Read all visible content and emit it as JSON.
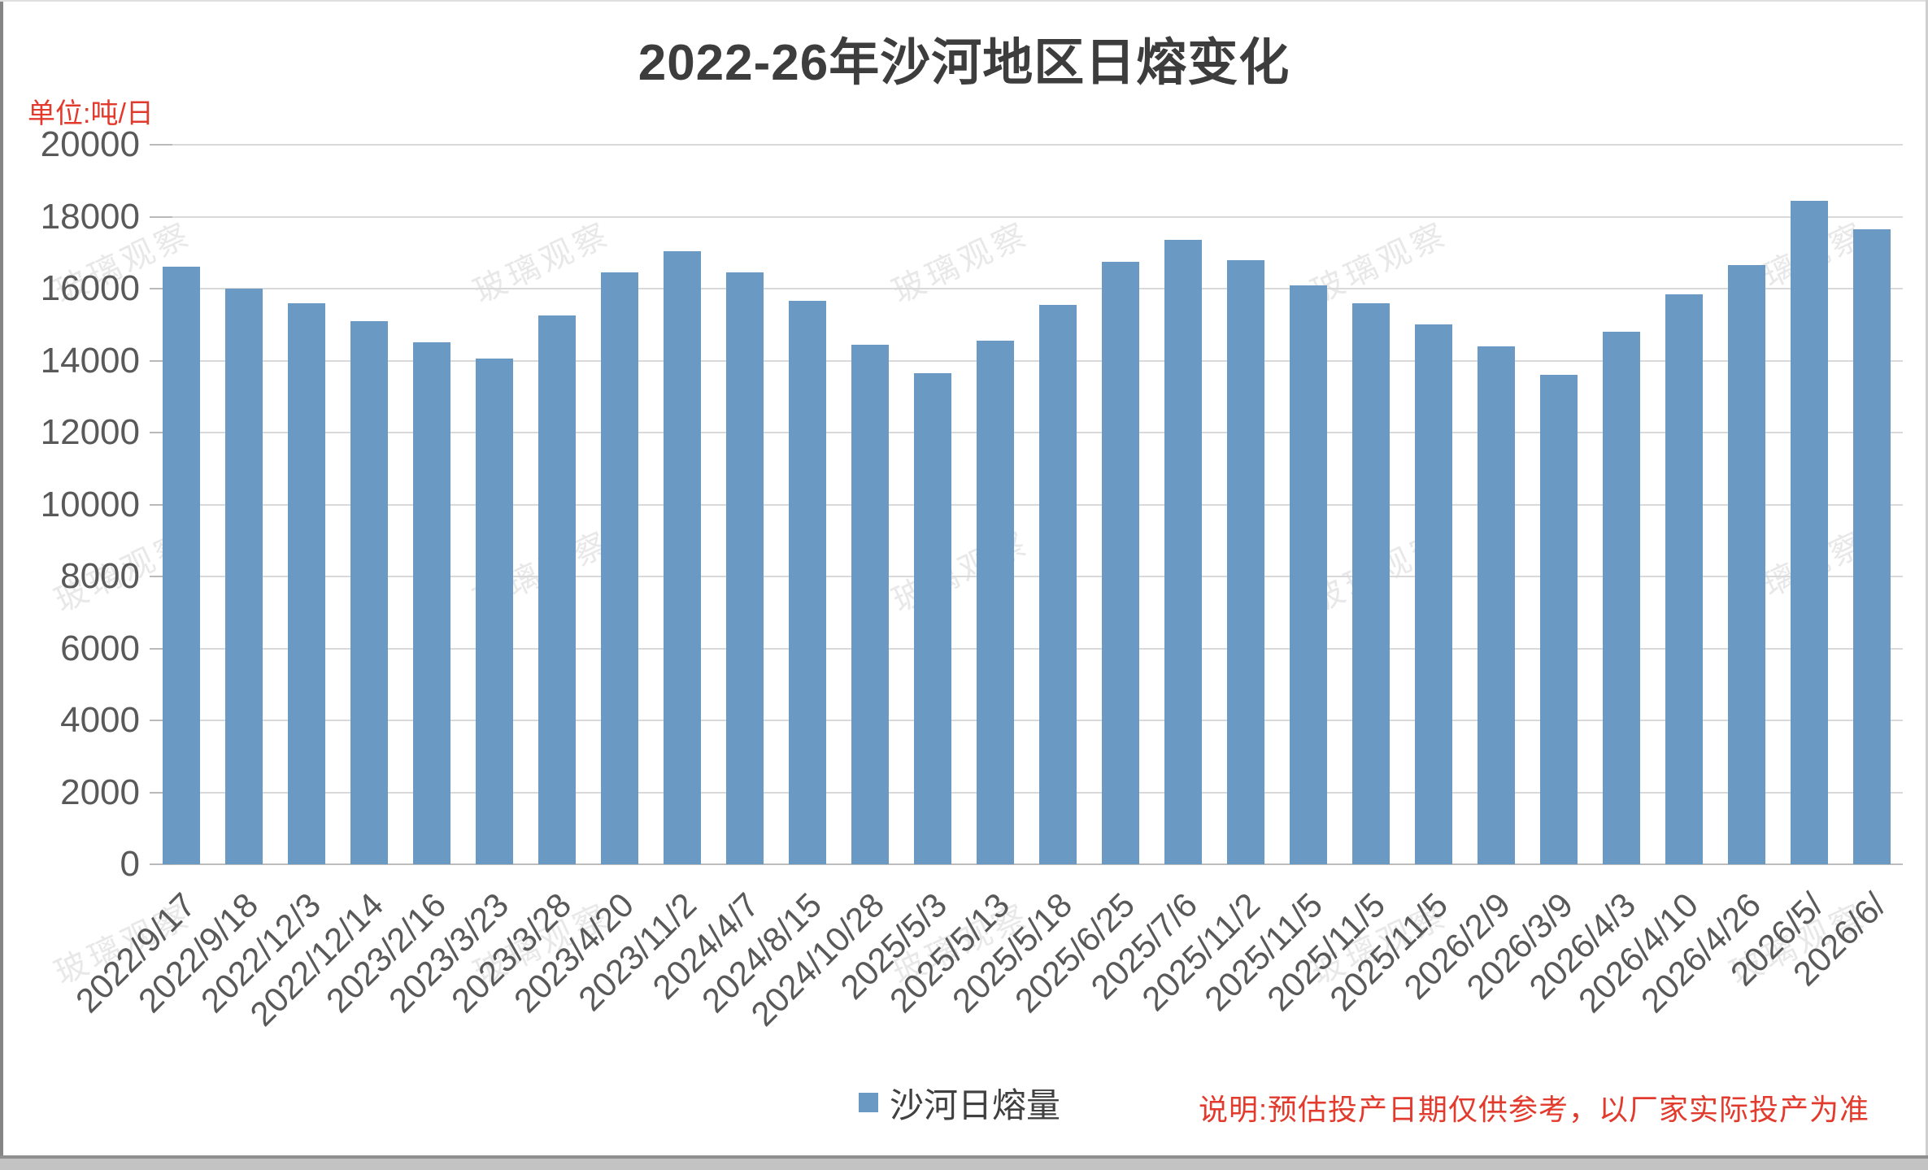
{
  "title": "2022-26年沙河地区日熔变化",
  "unit_label": "单位:吨/日",
  "watermark_text": "玻璃观察",
  "legend": {
    "series_label": "沙河日熔量"
  },
  "note": "说明:预估投产日期仅供参考，以厂家实际投产为准",
  "colors": {
    "bar": "#6a9ac3",
    "grid": "#d9d9d9",
    "axis_text": "#595959",
    "title_text": "#3d3d3d",
    "red_text": "#e23a2c"
  },
  "chart_data": {
    "type": "bar",
    "title": "2022-26年沙河地区日熔变化",
    "xlabel": "",
    "ylabel": "单位:吨/日",
    "ylim": [
      0,
      20000
    ],
    "ytick_step": 2000,
    "grid": true,
    "legend_position": "bottom",
    "categories": [
      "2022/9/17",
      "2022/9/18",
      "2022/12/3",
      "2022/12/14",
      "2023/2/16",
      "2023/3/23",
      "2023/3/28",
      "2023/4/20",
      "2023/11/2",
      "2024/4/7",
      "2024/8/15",
      "2024/10/28",
      "2025/5/3",
      "2025/5/13",
      "2025/5/18",
      "2025/6/25",
      "2025/7/6",
      "2025/11/2",
      "2025/11/5",
      "2025/11/5",
      "2025/11/5",
      "2026/2/9",
      "2026/3/9",
      "2026/4/3",
      "2026/4/10",
      "2026/4/26",
      "2026/5/",
      "2026/6/"
    ],
    "series": [
      {
        "name": "沙河日熔量",
        "values": [
          16600,
          16000,
          15600,
          15100,
          14500,
          14050,
          15250,
          16450,
          17050,
          16450,
          15650,
          14450,
          13650,
          14550,
          15550,
          16750,
          17350,
          16800,
          16100,
          15600,
          15000,
          14400,
          13600,
          14800,
          15850,
          16650,
          18450,
          17650
        ]
      }
    ]
  }
}
